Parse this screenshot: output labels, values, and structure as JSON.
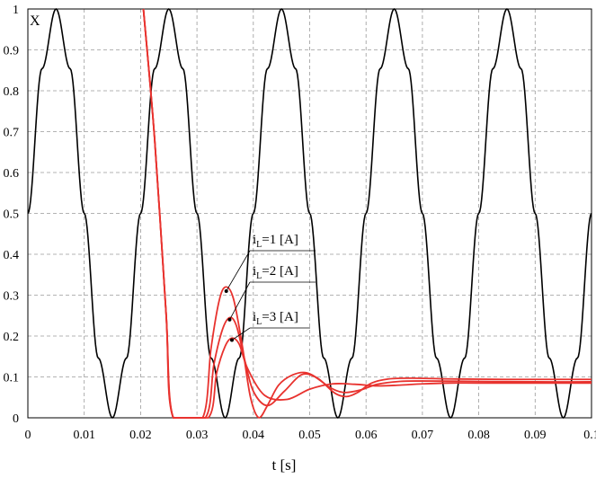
{
  "chart_data": {
    "type": "line",
    "xlabel": "t [s]",
    "ylabel": "X",
    "xlim": [
      0,
      0.1
    ],
    "ylim": [
      0,
      1
    ],
    "x_ticks": [
      "0",
      "0.01",
      "0.02",
      "0.03",
      "0.04",
      "0.05",
      "0.06",
      "0.07",
      "0.08",
      "0.09",
      "0.1"
    ],
    "y_ticks": [
      "0",
      "0.1",
      "0.2",
      "0.3",
      "0.4",
      "0.5",
      "0.6",
      "0.7",
      "0.8",
      "0.9",
      "1"
    ],
    "grid": true,
    "colors": {
      "reference": "#000000",
      "response": "#e8322e"
    },
    "annotations": [
      {
        "label": "i",
        "subscript": "L",
        "text": "=1 [A]"
      },
      {
        "label": "i",
        "subscript": "L",
        "text": "=2 [A]"
      },
      {
        "label": "i",
        "subscript": "L",
        "text": "=3 [A]"
      }
    ],
    "series": [
      {
        "x": [
          0,
          0.0025,
          0.005,
          0.0075,
          0.01,
          0.0125,
          0.015,
          0.0175,
          0.02,
          0.0225,
          0.025,
          0.0275,
          0.03,
          0.0325,
          0.035,
          0.0375,
          0.04,
          0.0425,
          0.045,
          0.0475,
          0.05,
          0.0525,
          0.055,
          0.0575,
          0.06,
          0.0625,
          0.065,
          0.0675,
          0.07,
          0.0725,
          0.075,
          0.0775,
          0.08,
          0.0825,
          0.085,
          0.0875,
          0.09,
          0.0925,
          0.095,
          0.0975,
          0.1
        ],
        "y": [
          0.5,
          0.854,
          1.0,
          0.854,
          0.5,
          0.146,
          0.0,
          0.146,
          0.5,
          0.854,
          1.0,
          0.854,
          0.5,
          0.146,
          0.0,
          0.146,
          0.5,
          0.854,
          1.0,
          0.854,
          0.5,
          0.146,
          0.0,
          0.146,
          0.5,
          0.854,
          1.0,
          0.854,
          0.5,
          0.146,
          0.0,
          0.146,
          0.5,
          0.854,
          1.0,
          0.854,
          0.5,
          0.146,
          0.0,
          0.146,
          0.5
        ]
      },
      {
        "x": [
          0.0205,
          0.0225,
          0.0245,
          0.0258,
          0.031,
          0.0325,
          0.034,
          0.0352,
          0.0365,
          0.038,
          0.0395,
          0.041,
          0.0425,
          0.0445,
          0.047,
          0.0495,
          0.052,
          0.0545,
          0.0565,
          0.0585,
          0.061,
          0.064,
          0.068,
          0.075,
          0.085,
          0.1
        ],
        "y": [
          1.0,
          0.68,
          0.26,
          0.0,
          0.0,
          0.17,
          0.29,
          0.32,
          0.29,
          0.18,
          0.05,
          0.0,
          0.03,
          0.08,
          0.105,
          0.11,
          0.09,
          0.06,
          0.052,
          0.062,
          0.085,
          0.095,
          0.097,
          0.095,
          0.094,
          0.094
        ]
      },
      {
        "x": [
          0.0205,
          0.0225,
          0.0245,
          0.0258,
          0.0315,
          0.033,
          0.0345,
          0.0358,
          0.037,
          0.0385,
          0.04,
          0.0425,
          0.0455,
          0.0485,
          0.051,
          0.0535,
          0.056,
          0.059,
          0.062,
          0.066,
          0.07,
          0.08,
          0.09,
          0.1
        ],
        "y": [
          1.0,
          0.68,
          0.26,
          0.0,
          0.0,
          0.13,
          0.215,
          0.245,
          0.225,
          0.14,
          0.065,
          0.03,
          0.065,
          0.105,
          0.1,
          0.075,
          0.062,
          0.068,
          0.082,
          0.089,
          0.09,
          0.089,
          0.088,
          0.088
        ]
      },
      {
        "x": [
          0.0205,
          0.0225,
          0.0245,
          0.0258,
          0.032,
          0.0335,
          0.035,
          0.0362,
          0.0375,
          0.039,
          0.042,
          0.046,
          0.05,
          0.054,
          0.058,
          0.062,
          0.066,
          0.07,
          0.075,
          0.08,
          0.09,
          0.1
        ],
        "y": [
          1.0,
          0.68,
          0.26,
          0.0,
          0.0,
          0.11,
          0.175,
          0.195,
          0.18,
          0.12,
          0.055,
          0.045,
          0.07,
          0.083,
          0.082,
          0.078,
          0.08,
          0.083,
          0.085,
          0.085,
          0.085,
          0.085
        ]
      }
    ]
  }
}
